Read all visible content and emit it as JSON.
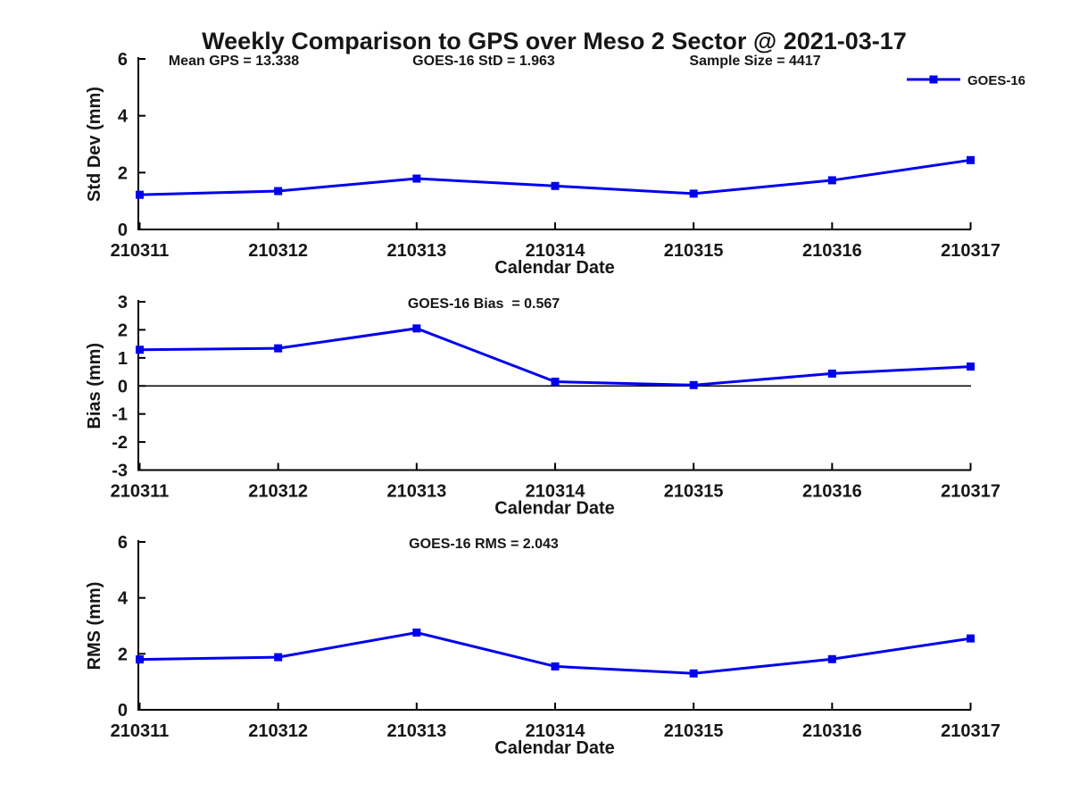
{
  "chart_title": "Weekly Comparison to GPS over Meso 2 Sector @ 2021-03-17",
  "legend": {
    "label": "GOES-16",
    "position": "top-right",
    "marker": "square"
  },
  "colors": {
    "series": "#0000ee",
    "axis": "#000000",
    "background": "#ffffff",
    "text": "#161616"
  },
  "chart_data": [
    {
      "type": "line",
      "name": "std-dev",
      "annotations": [
        "Mean GPS = 13.338",
        "GOES-16 StD = 1.963",
        "Sample Size = 4417"
      ],
      "xlabel": "Calendar Date",
      "ylabel": "Std Dev (mm)",
      "ylim": [
        0,
        6
      ],
      "yticks": [
        0,
        2,
        4,
        6
      ],
      "grid": false,
      "zero_line": false,
      "categories": [
        "210311",
        "210312",
        "210313",
        "210314",
        "210315",
        "210316",
        "210317"
      ],
      "series": [
        {
          "name": "GOES-16",
          "marker": "square",
          "values": [
            1.22,
            1.35,
            1.79,
            1.53,
            1.26,
            1.73,
            2.44
          ]
        }
      ]
    },
    {
      "type": "line",
      "name": "bias",
      "annotations": [
        "GOES-16 Bias  = 0.567"
      ],
      "xlabel": "Calendar Date",
      "ylabel": "Bias (mm)",
      "ylim": [
        -3,
        3
      ],
      "yticks": [
        -3,
        -2,
        -1,
        0,
        1,
        2,
        3
      ],
      "grid": false,
      "zero_line": true,
      "categories": [
        "210311",
        "210312",
        "210313",
        "210314",
        "210315",
        "210316",
        "210317"
      ],
      "series": [
        {
          "name": "GOES-16",
          "marker": "square",
          "values": [
            1.29,
            1.34,
            2.05,
            0.15,
            0.03,
            0.44,
            0.69
          ]
        }
      ]
    },
    {
      "type": "line",
      "name": "rms",
      "annotations": [
        "GOES-16 RMS = 2.043"
      ],
      "xlabel": "Calendar Date",
      "ylabel": "RMS (mm)",
      "ylim": [
        0,
        6
      ],
      "yticks": [
        0,
        2,
        4,
        6
      ],
      "grid": false,
      "zero_line": false,
      "categories": [
        "210311",
        "210312",
        "210313",
        "210314",
        "210315",
        "210316",
        "210317"
      ],
      "series": [
        {
          "name": "GOES-16",
          "marker": "square",
          "values": [
            1.8,
            1.88,
            2.76,
            1.55,
            1.3,
            1.81,
            2.55
          ]
        }
      ]
    }
  ]
}
